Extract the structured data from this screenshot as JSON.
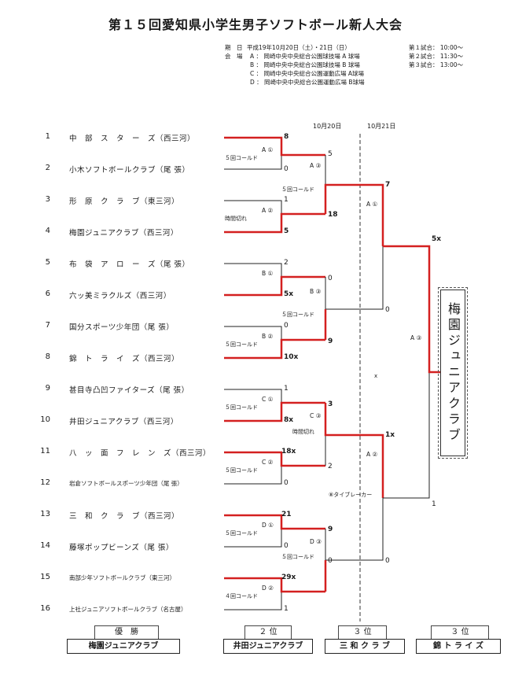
{
  "title": "第１５回愛知県小学生男子ソフトボール新人大会",
  "info": {
    "date_label": "期　日",
    "date_value": "平成19年10月20日（土）・21日（日）",
    "venue_label": "会　場",
    "venues": [
      "A ： 岡崎中央中央総合公園球技場 A 球場",
      "B ： 岡崎中央中央総合公園球技場 B 球場",
      "C ： 岡崎中央中央総合公園運動広場 A球場",
      "D ： 岡崎中央中央総合公園運動広場 B球場"
    ],
    "games": [
      "第１試合： 10:00～",
      "第２試合： 11:30～",
      "第３試合： 13:00～"
    ]
  },
  "dates": {
    "day1": "10月20日",
    "day2": "10月21日"
  },
  "teams": [
    {
      "no": "1",
      "name": "中　部　ス　タ　ー　ズ（西三河）"
    },
    {
      "no": "2",
      "name": "小木ソフトボールクラブ（尾 張）"
    },
    {
      "no": "3",
      "name": "形　原　ク　ラ　ブ（東三河）"
    },
    {
      "no": "4",
      "name": "梅園ジュニアクラブ（西三河）"
    },
    {
      "no": "5",
      "name": "布　袋　ア　ロ　ー　ズ（尾 張）"
    },
    {
      "no": "6",
      "name": "六ッ美ミラクルズ（西三河）"
    },
    {
      "no": "7",
      "name": "国分スポーツ少年団（尾 張）"
    },
    {
      "no": "8",
      "name": "錦　ト　ラ　イ　ズ（西三河）"
    },
    {
      "no": "9",
      "name": "甚目寺凸凹ファイターズ（尾 張）"
    },
    {
      "no": "10",
      "name": "井田ジュニアクラブ（西三河）"
    },
    {
      "no": "11",
      "name": "八　ッ　面　フ　レ　ン　ズ（西三河）"
    },
    {
      "no": "12",
      "name": "岩倉ソフトボールスポーツ少年団（尾 張）"
    },
    {
      "no": "13",
      "name": "三　和　ク　ラ　ブ（西三河）"
    },
    {
      "no": "14",
      "name": "藤塚ポップビーンズ（尾 張）"
    },
    {
      "no": "15",
      "name": "南部少年ソフトボールクラブ（東三河）"
    },
    {
      "no": "16",
      "name": "上社ジュニアソフトボールクラブ（名古屋）"
    }
  ],
  "r1": [
    {
      "label": "A ①",
      "note": "５回コールド",
      "top": "8",
      "bot": "0"
    },
    {
      "label": "A ②",
      "note": "時間切れ",
      "top": "1",
      "bot": "5"
    },
    {
      "label": "B ①",
      "note": "",
      "top": "2",
      "bot": "5x"
    },
    {
      "label": "B ②",
      "note": "５回コールド",
      "top": "0",
      "bot": "10x"
    },
    {
      "label": "C ①",
      "note": "５回コールド",
      "top": "1",
      "bot": "8x"
    },
    {
      "label": "C ②",
      "note": "５回コールド",
      "top": "18x",
      "bot": "0"
    },
    {
      "label": "D ①",
      "note": "５回コールド",
      "top": "21",
      "bot": "0"
    },
    {
      "label": "D ②",
      "note": "４回コールド",
      "top": "29x",
      "bot": "1"
    }
  ],
  "r2": [
    {
      "label": "A ③",
      "note": "５回コールド",
      "top": "5",
      "bot": "18"
    },
    {
      "label": "B ③",
      "note": "５回コールド",
      "top": "0",
      "bot": "9"
    },
    {
      "label": "C ③",
      "note": "時間切れ",
      "top": "3",
      "bot": "2"
    },
    {
      "label": "D ③",
      "note": "５回コールド",
      "top": "9",
      "bot": "0"
    }
  ],
  "r3": [
    {
      "label": "A ①",
      "top": "7",
      "bot": "0"
    },
    {
      "label": "A ②",
      "top": "1x",
      "bot": "0",
      "note": "⑧タイブレーカー"
    }
  ],
  "final": {
    "label": "A ③",
    "top": "5x",
    "bot": "1"
  },
  "misc_mark": "x",
  "winner": "梅園ジュニアクラブ",
  "ranks": [
    {
      "label": "優　勝",
      "team": "梅園ジュニアクラブ"
    },
    {
      "label": "２ 位",
      "team": "井田ジュニアクラブ"
    },
    {
      "label": "３ 位",
      "team": "三 和 ク ラ ブ"
    },
    {
      "label": "３ 位",
      "team": "錦 ト ラ イ ズ"
    }
  ],
  "colors": {
    "winner_line": "#d42020",
    "line": "#222222"
  }
}
